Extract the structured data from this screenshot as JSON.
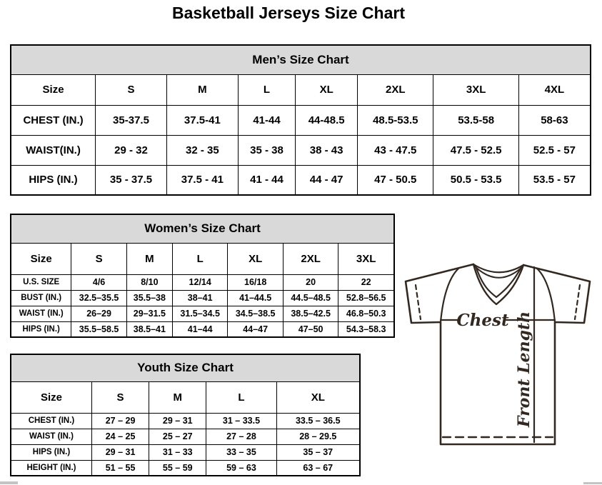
{
  "title": "Basketball Jerseys Size Chart",
  "mens": {
    "title": "Men’s Size Chart",
    "columns": [
      "Size",
      "S",
      "M",
      "L",
      "XL",
      "2XL",
      "3XL",
      "4XL"
    ],
    "rows": [
      {
        "label": "CHEST (IN.)",
        "values": [
          "35-37.5",
          "37.5-41",
          "41-44",
          "44-48.5",
          "48.5-53.5",
          "53.5-58",
          "58-63"
        ]
      },
      {
        "label": "WAIST(IN.)",
        "values": [
          "29 - 32",
          "32 - 35",
          "35 - 38",
          "38 - 43",
          "43 - 47.5",
          "47.5 - 52.5",
          "52.5 - 57"
        ]
      },
      {
        "label": "HIPS (IN.)",
        "values": [
          "35 - 37.5",
          "37.5 - 41",
          "41 - 44",
          "44 - 47",
          "47 - 50.5",
          "50.5 - 53.5",
          "53.5 - 57"
        ]
      }
    ]
  },
  "womens": {
    "title": "Women’s Size Chart",
    "columns": [
      "Size",
      "S",
      "M",
      "L",
      "XL",
      "2XL",
      "3XL"
    ],
    "rows": [
      {
        "label": "U.S. SIZE",
        "values": [
          "4/6",
          "8/10",
          "12/14",
          "16/18",
          "20",
          "22"
        ]
      },
      {
        "label": "BUST (IN.)",
        "values": [
          "32.5–35.5",
          "35.5–38",
          "38–41",
          "41–44.5",
          "44.5–48.5",
          "52.8–56.5"
        ]
      },
      {
        "label": "WAIST (IN.)",
        "values": [
          "26–29",
          "29–31.5",
          "31.5–34.5",
          "34.5–38.5",
          "38.5–42.5",
          "46.8–50.3"
        ]
      },
      {
        "label": "HIPS (IN.)",
        "values": [
          "35.5–58.5",
          "38.5–41",
          "41–44",
          "44–47",
          "47–50",
          "54.3–58.3"
        ]
      }
    ]
  },
  "youth": {
    "title": "Youth Size Chart",
    "columns": [
      "Size",
      "S",
      "M",
      "L",
      "XL"
    ],
    "rows": [
      {
        "label": "CHEST (IN.)",
        "values": [
          "27 – 29",
          "29 – 31",
          "31 – 33.5",
          "33.5 – 36.5"
        ]
      },
      {
        "label": "WAIST (IN.)",
        "values": [
          "24 – 25",
          "25 – 27",
          "27 – 28",
          "28 – 29.5"
        ]
      },
      {
        "label": "HIPS (IN.)",
        "values": [
          "29 – 31",
          "31 – 33",
          "33 – 35",
          "35 – 37"
        ]
      },
      {
        "label": "HEIGHT (IN.)",
        "values": [
          "51 – 55",
          "55 – 59",
          "59 – 63",
          "63 – 67"
        ]
      }
    ]
  },
  "diagram": {
    "chest_label": "Chest",
    "front_length_label": "Front Length"
  },
  "colors": {
    "header_band_bg": "#d9d9d9",
    "table_border": "#000000",
    "jersey_line": "#32281f",
    "scrollbar": "#c4c4c4"
  }
}
